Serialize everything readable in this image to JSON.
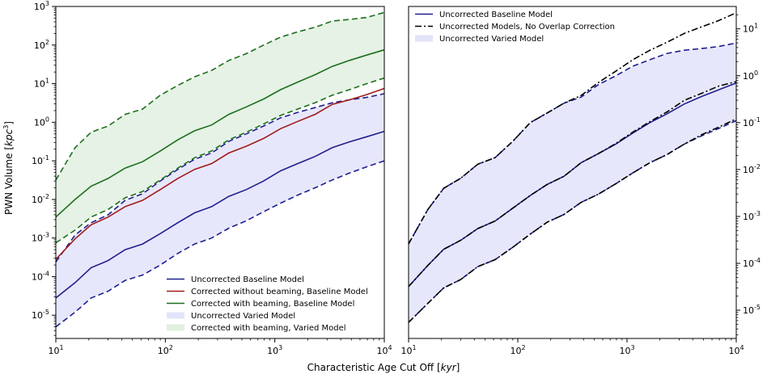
{
  "figure": {
    "xlabel": "Characteristic Age Cut Off [",
    "xlabel_unit": "kyr",
    "xlabel_close": "]",
    "ylabel": "PWN Volume [",
    "ylabel_unit": "kpc",
    "ylabel_sup": "3",
    "ylabel_close": "]"
  },
  "chart_data": [
    {
      "type": "line",
      "panel": "left",
      "xscale": "log",
      "yscale": "log",
      "xlim": [
        10,
        10000
      ],
      "ylim": [
        2.5e-06,
        1000
      ],
      "x_ticks": [
        10,
        100,
        1000,
        10000
      ],
      "x_tick_labels": [
        "10",
        "10",
        "10",
        "10"
      ],
      "x_tick_exps": [
        "1",
        "2",
        "3",
        "4"
      ],
      "y_ticks": [
        1e-05,
        0.0001,
        0.001,
        0.01,
        0.1,
        1,
        10,
        100,
        1000
      ],
      "y_tick_labels": [
        "10",
        "10",
        "10",
        "10",
        "10",
        "10",
        "10",
        "10",
        "10"
      ],
      "y_tick_exps": [
        "-5",
        "-4",
        "-3",
        "-2",
        "-1",
        "0",
        "1",
        "2",
        "3"
      ],
      "y_axis_side": "left",
      "grid": false,
      "legend_position": "lower-right",
      "x": [
        10,
        15,
        21,
        30,
        43,
        62,
        90,
        130,
        185,
        265,
        380,
        550,
        790,
        1130,
        1620,
        2330,
        3350,
        4800,
        6900,
        10000
      ],
      "series": [
        {
          "name": "Uncorrected Baseline Model",
          "kind": "line",
          "color": "#1f1f8f",
          "dash": "solid",
          "values": [
            2.8e-05,
            7e-05,
            0.00017,
            0.00026,
            0.0005,
            0.0007,
            0.0013,
            0.0025,
            0.0045,
            0.0065,
            0.012,
            0.018,
            0.03,
            0.055,
            0.085,
            0.13,
            0.22,
            0.31,
            0.42,
            0.58
          ]
        },
        {
          "name": "",
          "kind": "line",
          "color": "#1f1f8f",
          "dash": "dashed",
          "values": [
            5e-06,
            1.2e-05,
            2.8e-05,
            4.2e-05,
            8e-05,
            0.00011,
            0.0002,
            0.0004,
            0.0007,
            0.001,
            0.0018,
            0.0028,
            0.0048,
            0.008,
            0.013,
            0.02,
            0.032,
            0.048,
            0.07,
            0.1
          ]
        },
        {
          "name": "",
          "kind": "line",
          "color": "#1f1f8f",
          "dash": "dashed",
          "values": [
            0.00024,
            0.0012,
            0.0025,
            0.004,
            0.0095,
            0.014,
            0.03,
            0.06,
            0.11,
            0.16,
            0.32,
            0.5,
            0.8,
            1.3,
            1.8,
            2.4,
            3.2,
            3.8,
            4.4,
            5.5
          ]
        },
        {
          "name": "Corrected without beaming, Baseline Model",
          "kind": "line",
          "color": "#a01c1c",
          "dash": "solid",
          "values": [
            0.00028,
            0.00095,
            0.0022,
            0.0035,
            0.0065,
            0.0095,
            0.018,
            0.035,
            0.06,
            0.085,
            0.16,
            0.24,
            0.38,
            0.68,
            1.05,
            1.6,
            2.9,
            3.8,
            5.2,
            7.5
          ]
        },
        {
          "name": "Corrected with beaming, Baseline Model",
          "kind": "line",
          "color": "#1e6e1e",
          "dash": "solid",
          "values": [
            0.0035,
            0.01,
            0.022,
            0.035,
            0.065,
            0.095,
            0.18,
            0.35,
            0.6,
            0.85,
            1.6,
            2.5,
            4.0,
            7.0,
            11,
            17,
            28,
            40,
            55,
            75
          ]
        },
        {
          "name": "",
          "kind": "line",
          "color": "#1e6e1e",
          "dash": "dashed",
          "values": [
            0.00075,
            0.0016,
            0.0035,
            0.0055,
            0.011,
            0.016,
            0.032,
            0.065,
            0.12,
            0.18,
            0.35,
            0.55,
            0.9,
            1.5,
            2.2,
            3.2,
            5,
            7,
            10,
            14
          ]
        },
        {
          "name": "",
          "kind": "line",
          "color": "#1e6e1e",
          "dash": "dashed",
          "values": [
            0.032,
            0.22,
            0.55,
            0.8,
            1.6,
            2.2,
            5,
            9,
            15,
            22,
            40,
            60,
            100,
            160,
            220,
            290,
            420,
            460,
            520,
            700
          ]
        },
        {
          "name": "Uncorrected Varied Model",
          "kind": "band",
          "color": "#e3e3fa",
          "lower": [
            5e-06,
            1.2e-05,
            2.8e-05,
            4.2e-05,
            8e-05,
            0.00011,
            0.0002,
            0.0004,
            0.0007,
            0.001,
            0.0018,
            0.0028,
            0.0048,
            0.008,
            0.013,
            0.02,
            0.032,
            0.048,
            0.07,
            0.1
          ],
          "upper": [
            0.00024,
            0.0012,
            0.0025,
            0.004,
            0.0095,
            0.014,
            0.03,
            0.06,
            0.11,
            0.16,
            0.32,
            0.5,
            0.8,
            1.3,
            1.8,
            2.4,
            3.2,
            3.8,
            4.4,
            5.5
          ]
        },
        {
          "name": "Corrected with beaming, Varied Model",
          "kind": "band",
          "color": "#e1f0e1",
          "lower": [
            0.00075,
            0.0016,
            0.0035,
            0.0055,
            0.011,
            0.016,
            0.032,
            0.065,
            0.12,
            0.18,
            0.35,
            0.55,
            0.9,
            1.5,
            2.2,
            3.2,
            5,
            7,
            10,
            14
          ],
          "upper": [
            0.032,
            0.22,
            0.55,
            0.8,
            1.6,
            2.2,
            5,
            9,
            15,
            22,
            40,
            60,
            100,
            160,
            220,
            290,
            420,
            460,
            520,
            700
          ]
        }
      ],
      "legend": [
        {
          "label": "Uncorrected Baseline Model",
          "kind": "line",
          "color": "#1f1f8f"
        },
        {
          "label": "Corrected without beaming, Baseline Model",
          "kind": "line",
          "color": "#a01c1c"
        },
        {
          "label": "Corrected with beaming, Baseline Model",
          "kind": "line",
          "color": "#1e6e1e"
        },
        {
          "label": "Uncorrected Varied Model",
          "kind": "patch",
          "color": "#e3e3fa"
        },
        {
          "label": "Corrected with beaming, Varied Model",
          "kind": "patch",
          "color": "#e1f0e1"
        }
      ]
    },
    {
      "type": "line",
      "panel": "right",
      "xscale": "log",
      "yscale": "log",
      "xlim": [
        10,
        10000
      ],
      "ylim": [
        2.5e-06,
        30
      ],
      "x_ticks": [
        10,
        100,
        1000,
        10000
      ],
      "x_tick_labels": [
        "10",
        "10",
        "10",
        "10"
      ],
      "x_tick_exps": [
        "1",
        "2",
        "3",
        "4"
      ],
      "y_ticks": [
        1e-05,
        0.0001,
        0.001,
        0.01,
        0.1,
        1,
        10
      ],
      "y_tick_labels": [
        "10",
        "10",
        "10",
        "10",
        "10",
        "10",
        "10"
      ],
      "y_tick_exps": [
        "-5",
        "-4",
        "-3",
        "-2",
        "-1",
        "0",
        "1"
      ],
      "y_axis_side": "right",
      "grid": false,
      "legend_position": "top-left",
      "x": [
        10,
        15,
        21,
        30,
        43,
        62,
        90,
        130,
        185,
        265,
        380,
        550,
        790,
        1130,
        1620,
        2330,
        3350,
        4800,
        6900,
        10000
      ],
      "series": [
        {
          "name": "Uncorrected Baseline Model",
          "kind": "line",
          "color": "#1f1f8f",
          "dash": "solid",
          "values": [
            3.2e-05,
            9e-05,
            0.0002,
            0.00031,
            0.00055,
            0.0008,
            0.0015,
            0.0028,
            0.0048,
            0.0072,
            0.014,
            0.022,
            0.035,
            0.06,
            0.1,
            0.155,
            0.25,
            0.36,
            0.5,
            0.7
          ]
        },
        {
          "name": "",
          "kind": "line",
          "color": "#1f1f8f",
          "dash": "dashed",
          "values": [
            5.5e-06,
            1.4e-05,
            3e-05,
            4.5e-05,
            8.5e-05,
            0.00012,
            0.00022,
            0.00042,
            0.00075,
            0.0011,
            0.002,
            0.003,
            0.005,
            0.0085,
            0.014,
            0.021,
            0.035,
            0.052,
            0.075,
            0.11
          ]
        },
        {
          "name": "",
          "kind": "line",
          "color": "#1f1f8f",
          "dash": "dashed",
          "values": [
            0.00026,
            0.0014,
            0.004,
            0.0065,
            0.013,
            0.018,
            0.04,
            0.1,
            0.16,
            0.26,
            0.35,
            0.65,
            1.0,
            1.6,
            2.2,
            3.0,
            3.5,
            3.8,
            4.2,
            5.0
          ]
        },
        {
          "name": "Uncorrected Models, No Overlap Correction",
          "kind": "line",
          "color": "#000000",
          "dash": "dashdot",
          "values": [
            3.2e-05,
            9e-05,
            0.0002,
            0.00031,
            0.00055,
            0.0008,
            0.0015,
            0.0028,
            0.0048,
            0.0072,
            0.014,
            0.022,
            0.036,
            0.063,
            0.105,
            0.17,
            0.3,
            0.42,
            0.6,
            0.75
          ]
        },
        {
          "name": "",
          "kind": "line",
          "color": "#000000",
          "dash": "dashdot",
          "values": [
            5.5e-06,
            1.4e-05,
            3e-05,
            4.5e-05,
            8.5e-05,
            0.00012,
            0.00022,
            0.00042,
            0.00075,
            0.0011,
            0.002,
            0.003,
            0.005,
            0.0085,
            0.014,
            0.021,
            0.035,
            0.055,
            0.08,
            0.12
          ]
        },
        {
          "name": "",
          "kind": "line",
          "color": "#000000",
          "dash": "dashdot",
          "values": [
            0.00026,
            0.0014,
            0.004,
            0.0065,
            0.013,
            0.018,
            0.04,
            0.1,
            0.16,
            0.26,
            0.38,
            0.72,
            1.25,
            2.2,
            3.5,
            5.2,
            8,
            11,
            15,
            22
          ]
        },
        {
          "name": "Uncorrected Varied Model",
          "kind": "band",
          "color": "#e3e3fa",
          "lower": [
            5.5e-06,
            1.4e-05,
            3e-05,
            4.5e-05,
            8.5e-05,
            0.00012,
            0.00022,
            0.00042,
            0.00075,
            0.0011,
            0.002,
            0.003,
            0.005,
            0.0085,
            0.014,
            0.021,
            0.035,
            0.052,
            0.075,
            0.11
          ],
          "upper": [
            0.00026,
            0.0014,
            0.004,
            0.0065,
            0.013,
            0.018,
            0.04,
            0.1,
            0.16,
            0.26,
            0.35,
            0.65,
            1.0,
            1.6,
            2.2,
            3.0,
            3.5,
            3.8,
            4.2,
            5.0
          ]
        }
      ],
      "legend": [
        {
          "label": "Uncorrected Baseline Model",
          "kind": "line",
          "color": "#1f1f8f"
        },
        {
          "label": "Uncorrected Models, No Overlap Correction",
          "kind": "dashdot",
          "color": "#000000"
        },
        {
          "label": "Uncorrected Varied Model",
          "kind": "patch",
          "color": "#e3e3fa"
        }
      ]
    }
  ]
}
